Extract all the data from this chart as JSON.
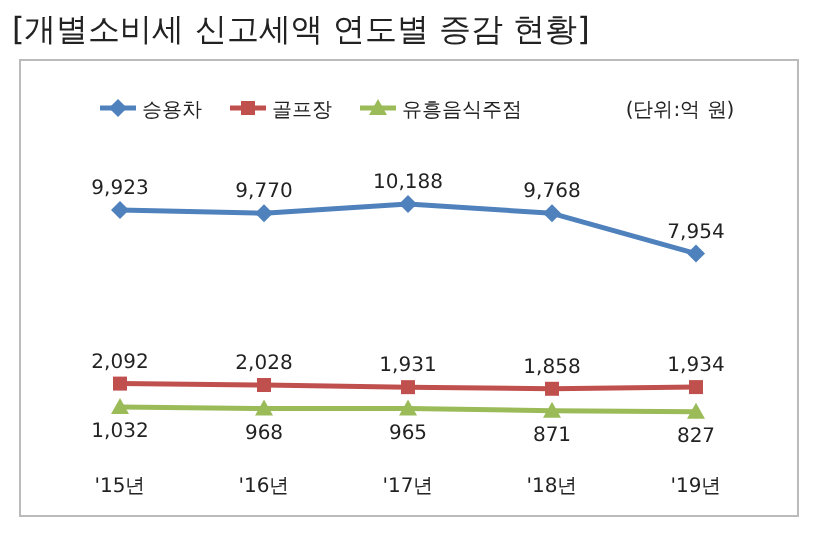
{
  "chart_data": {
    "type": "line",
    "title": "[개별소비세 신고세액 연도별 증감 현황]",
    "categories": [
      "'15년",
      "'16년",
      "'17년",
      "'18년",
      "'19년"
    ],
    "series": [
      {
        "name": "승용차",
        "color": "#4f81bd",
        "marker": "diamond",
        "values": [
          9923,
          9770,
          10188,
          9768,
          7954
        ],
        "value_labels": [
          "9,923",
          "9,770",
          "10,188",
          "9,768",
          "7,954"
        ]
      },
      {
        "name": "골프장",
        "color": "#c0504d",
        "marker": "square",
        "values": [
          2092,
          2028,
          1931,
          1858,
          1934
        ],
        "value_labels": [
          "2,092",
          "2,028",
          "1,931",
          "1,858",
          "1,934"
        ]
      },
      {
        "name": "유흥음식주점",
        "color": "#9bbb59",
        "marker": "triangle",
        "values": [
          1032,
          968,
          965,
          871,
          827
        ],
        "value_labels": [
          "1,032",
          "968",
          "965",
          "871",
          "827"
        ]
      }
    ],
    "annotations": [
      "(단위:억 원)"
    ],
    "legend": "top",
    "grid": false
  }
}
